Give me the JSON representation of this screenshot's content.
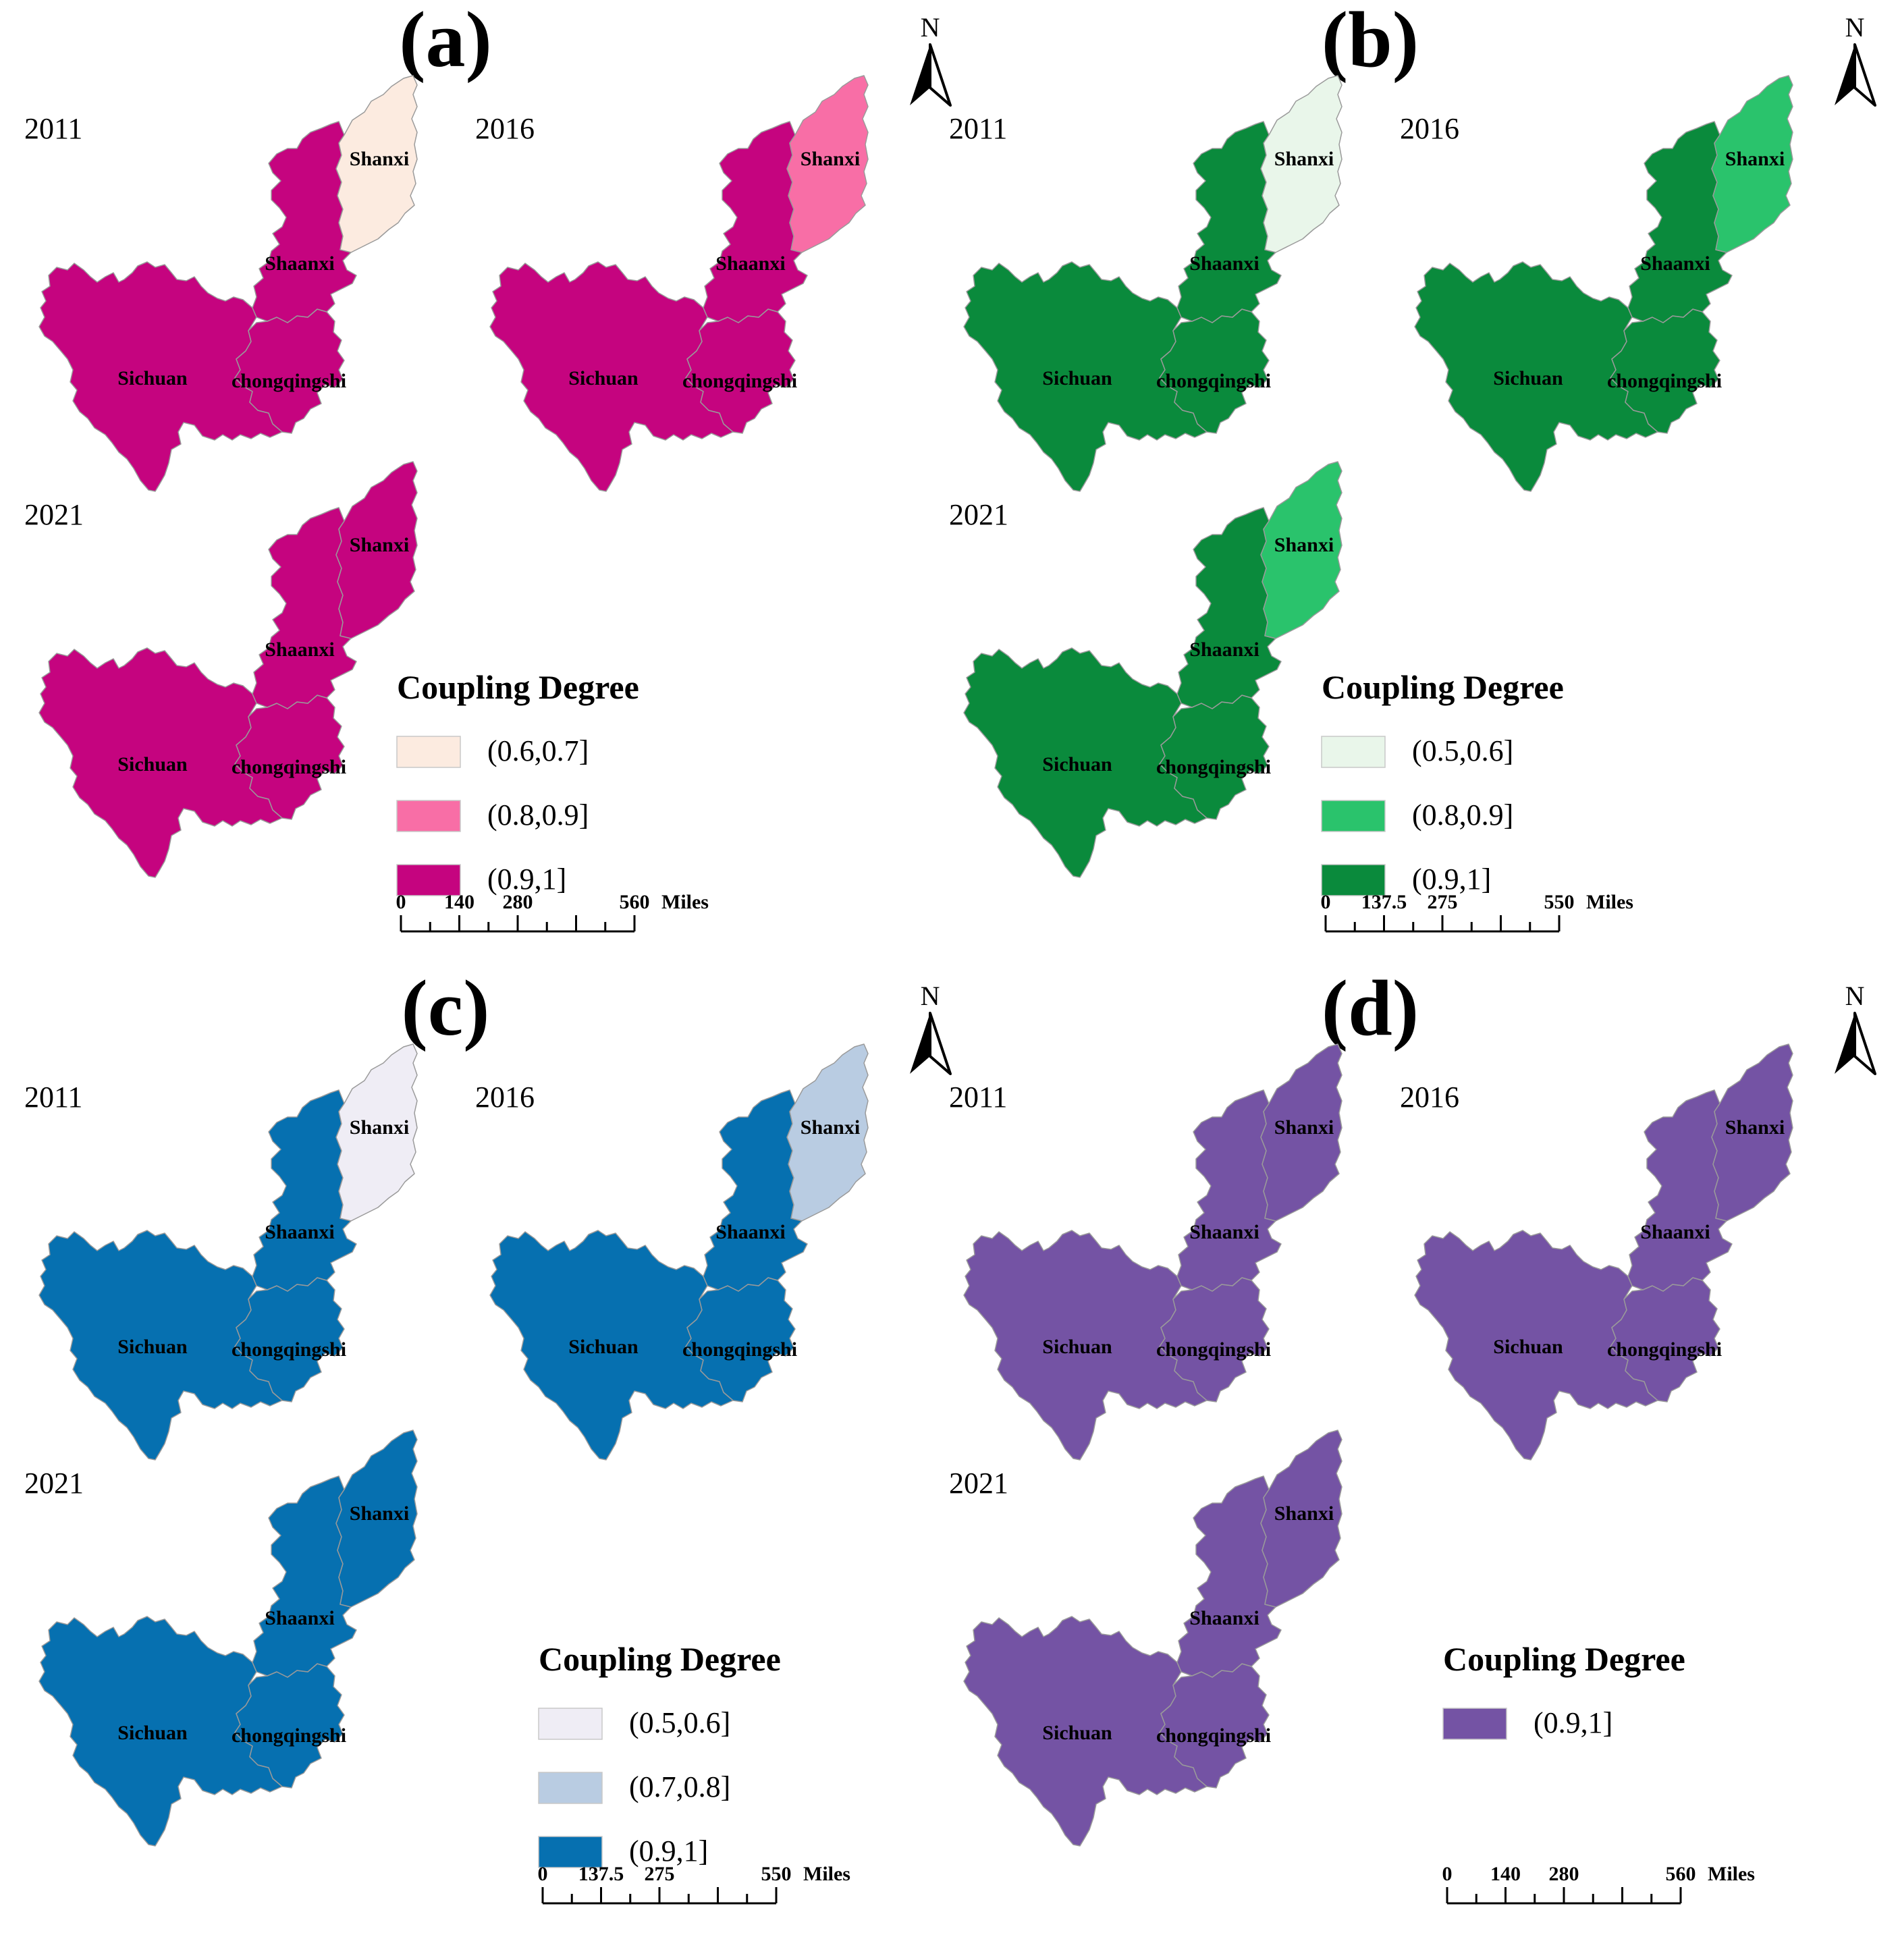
{
  "figure": {
    "region_names": {
      "shanxi": "Shanxi",
      "shaanxi": "Shaanxi",
      "sichuan": "Sichuan",
      "chongqing": "chongqingshi"
    },
    "north_label": "N",
    "icons": {
      "north_arrow": "north-arrow-icon"
    },
    "panels": [
      {
        "label": "(a)",
        "maps": [
          {
            "year": "2011",
            "fills": {
              "shanxi": "#fcebe0",
              "shaanxi": "#c5047f",
              "sichuan": "#c5047f",
              "chongqing": "#c5047f"
            }
          },
          {
            "year": "2016",
            "fills": {
              "shanxi": "#f86ea6",
              "shaanxi": "#c5047f",
              "sichuan": "#c5047f",
              "chongqing": "#c5047f"
            }
          },
          {
            "year": "2021",
            "fills": {
              "shanxi": "#c5047f",
              "shaanxi": "#c5047f",
              "sichuan": "#c5047f",
              "chongqing": "#c5047f"
            }
          }
        ],
        "legend": {
          "title": "Coupling Degree",
          "items": [
            {
              "label": "(0.6,0.7]",
              "color": "#fcebe0"
            },
            {
              "label": "(0.8,0.9]",
              "color": "#f86ea6"
            },
            {
              "label": "(0.9,1]",
              "color": "#c5047f"
            }
          ]
        },
        "scale": {
          "ticks": [
            "0",
            "140",
            "280"
          ],
          "end": "560",
          "unit": "Miles"
        }
      },
      {
        "label": "(b)",
        "maps": [
          {
            "year": "2011",
            "fills": {
              "shanxi": "#e9f6ea",
              "shaanxi": "#0a8a3c",
              "sichuan": "#0a8a3c",
              "chongqing": "#0a8a3c"
            }
          },
          {
            "year": "2016",
            "fills": {
              "shanxi": "#2ac36c",
              "shaanxi": "#0a8a3c",
              "sichuan": "#0a8a3c",
              "chongqing": "#0a8a3c"
            }
          },
          {
            "year": "2021",
            "fills": {
              "shanxi": "#2ac36c",
              "shaanxi": "#0a8a3c",
              "sichuan": "#0a8a3c",
              "chongqing": "#0a8a3c"
            }
          }
        ],
        "legend": {
          "title": "Coupling Degree",
          "items": [
            {
              "label": "(0.5,0.6]",
              "color": "#e9f6ea"
            },
            {
              "label": "(0.8,0.9]",
              "color": "#2ac36c"
            },
            {
              "label": "(0.9,1]",
              "color": "#0a8a3c"
            }
          ]
        },
        "scale": {
          "ticks": [
            "0",
            "137.5",
            "275"
          ],
          "end": "550",
          "unit": "Miles"
        }
      },
      {
        "label": "(c)",
        "maps": [
          {
            "year": "2011",
            "fills": {
              "shanxi": "#efedf5",
              "shaanxi": "#0670b0",
              "sichuan": "#0670b0",
              "chongqing": "#0670b0"
            }
          },
          {
            "year": "2016",
            "fills": {
              "shanxi": "#b9cce2",
              "shaanxi": "#0670b0",
              "sichuan": "#0670b0",
              "chongqing": "#0670b0"
            }
          },
          {
            "year": "2021",
            "fills": {
              "shanxi": "#0670b0",
              "shaanxi": "#0670b0",
              "sichuan": "#0670b0",
              "chongqing": "#0670b0"
            }
          }
        ],
        "legend": {
          "title": "Coupling Degree",
          "items": [
            {
              "label": "(0.5,0.6]",
              "color": "#efedf5"
            },
            {
              "label": "(0.7,0.8]",
              "color": "#b9cce2"
            },
            {
              "label": "(0.9,1]",
              "color": "#0670b0"
            }
          ]
        },
        "scale": {
          "ticks": [
            "0",
            "137.5",
            "275"
          ],
          "end": "550",
          "unit": "Miles"
        }
      },
      {
        "label": "(d)",
        "maps": [
          {
            "year": "2011",
            "fills": {
              "shanxi": "#7453a4",
              "shaanxi": "#7453a4",
              "sichuan": "#7453a4",
              "chongqing": "#7453a4"
            }
          },
          {
            "year": "2016",
            "fills": {
              "shanxi": "#7453a4",
              "shaanxi": "#7453a4",
              "sichuan": "#7453a4",
              "chongqing": "#7453a4"
            }
          },
          {
            "year": "2021",
            "fills": {
              "shanxi": "#7453a4",
              "shaanxi": "#7453a4",
              "sichuan": "#7453a4",
              "chongqing": "#7453a4"
            }
          }
        ],
        "legend": {
          "title": "Coupling Degree",
          "items": [
            {
              "label": "(0.9,1]",
              "color": "#7453a4"
            }
          ]
        },
        "scale": {
          "ticks": [
            "0",
            "140",
            "280"
          ],
          "end": "560",
          "unit": "Miles"
        }
      }
    ]
  }
}
